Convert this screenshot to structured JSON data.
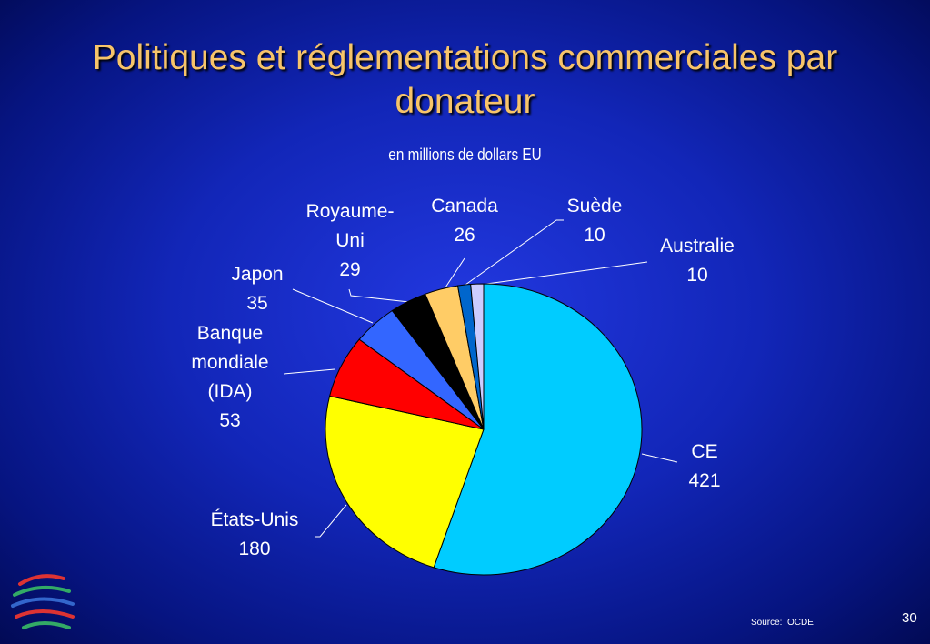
{
  "chart_data": {
    "type": "pie",
    "title": "Politiques et réglementations commerciales par donateur",
    "subtitle": "en millions de dollars EU",
    "categories": [
      "CE",
      "États-Unis",
      "Banque mondiale (IDA)",
      "Japon",
      "Royaume-Uni",
      "Canada",
      "Suède",
      "Australie"
    ],
    "values": [
      421,
      180,
      53,
      35,
      29,
      26,
      10,
      10
    ],
    "colors": [
      "#00ccff",
      "#ffff00",
      "#ff0000",
      "#3366ff",
      "#000000",
      "#ffcc66",
      "#0066cc",
      "#ccccff"
    ],
    "source": "Source:  OCDE"
  },
  "page_number": "30"
}
